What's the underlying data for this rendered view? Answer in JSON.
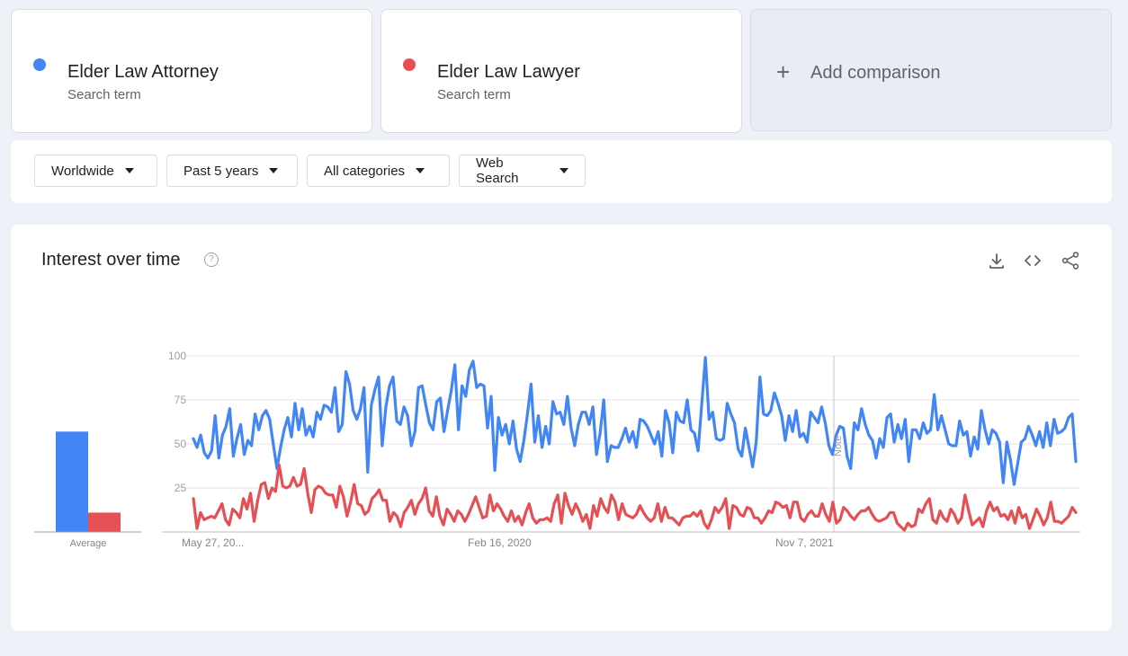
{
  "terms": [
    {
      "name": "Elder Law Attorney",
      "sub": "Search term",
      "color": "#4285f4"
    },
    {
      "name": "Elder Law Lawyer",
      "sub": "Search term",
      "color": "#e65055"
    }
  ],
  "add_comparison": {
    "plus": "+",
    "label": "Add comparison"
  },
  "filters": {
    "region": "Worldwide",
    "time": "Past 5 years",
    "category": "All categories",
    "property": "Web Search"
  },
  "panel": {
    "title": "Interest over time",
    "help": "?",
    "actions": [
      "download-icon",
      "embed-icon",
      "share-icon"
    ]
  },
  "chart_data": {
    "type": "line",
    "ylim": [
      0,
      100
    ],
    "y_ticks": [
      25,
      50,
      75,
      100
    ],
    "x_tick_labels": [
      "May 27, 20...",
      "Feb 16, 2020",
      "Nov 7, 2021"
    ],
    "note_label": "Note",
    "average": {
      "label": "Average",
      "values": [
        57,
        11
      ]
    },
    "series": [
      {
        "name": "Elder Law Attorney",
        "color": "#4285f4",
        "values": [
          53,
          48,
          55,
          45,
          42,
          46,
          66,
          42,
          55,
          60,
          70,
          43,
          53,
          61,
          44,
          52,
          49,
          67,
          58,
          66,
          69,
          64,
          50,
          36,
          48,
          58,
          65,
          54,
          73,
          58,
          70,
          55,
          60,
          54,
          68,
          64,
          72,
          71,
          68,
          82,
          57,
          61,
          91,
          84,
          69,
          64,
          70,
          82,
          34,
          72,
          81,
          88,
          49,
          71,
          83,
          88,
          63,
          61,
          71,
          66,
          49,
          57,
          82,
          83,
          72,
          62,
          58,
          74,
          76,
          57,
          69,
          80,
          95,
          58,
          83,
          77,
          92,
          97,
          82,
          84,
          83,
          59,
          77,
          35,
          65,
          55,
          61,
          50,
          63,
          47,
          40,
          52,
          67,
          84,
          51,
          66,
          48,
          60,
          50,
          74,
          67,
          68,
          61,
          77,
          59,
          49,
          61,
          68,
          68,
          61,
          71,
          44,
          56,
          75,
          40,
          49,
          48,
          48,
          53,
          59,
          51,
          57,
          48,
          64,
          63,
          60,
          55,
          50,
          57,
          43,
          69,
          62,
          45,
          68,
          63,
          62,
          75,
          58,
          56,
          46,
          73,
          99,
          64,
          68,
          53,
          52,
          53,
          73,
          67,
          62,
          47,
          43,
          59,
          48,
          37,
          51,
          88,
          67,
          66,
          69,
          79,
          73,
          66,
          52,
          66,
          57,
          69,
          54,
          56,
          51,
          68,
          65,
          62,
          71,
          62,
          49,
          44,
          55,
          60,
          59,
          43,
          36,
          62,
          58,
          70,
          61,
          55,
          52,
          42,
          53,
          48,
          65,
          67,
          51,
          61,
          53,
          64,
          40,
          58,
          58,
          53,
          62,
          56,
          58,
          78,
          58,
          66,
          58,
          50,
          49,
          49,
          63,
          55,
          57,
          43,
          54,
          47,
          69,
          58,
          50,
          58,
          56,
          51,
          28,
          51,
          41,
          27,
          39,
          51,
          53,
          60,
          55,
          49,
          57,
          48,
          62,
          49,
          64,
          56,
          57,
          59,
          65,
          67,
          40
        ]
      },
      {
        "name": "Elder Law Lawyer",
        "color": "#e65055",
        "values": [
          19,
          2,
          11,
          7,
          8,
          9,
          8,
          12,
          16,
          7,
          4,
          13,
          11,
          8,
          19,
          13,
          22,
          6,
          18,
          27,
          28,
          19,
          25,
          23,
          38,
          26,
          25,
          26,
          31,
          26,
          27,
          36,
          22,
          11,
          24,
          26,
          25,
          22,
          21,
          21,
          14,
          26,
          20,
          9,
          17,
          27,
          16,
          15,
          10,
          12,
          19,
          21,
          24,
          18,
          18,
          6,
          11,
          9,
          3,
          11,
          14,
          18,
          10,
          16,
          19,
          25,
          12,
          9,
          20,
          9,
          4,
          13,
          10,
          6,
          12,
          10,
          6,
          10,
          15,
          20,
          14,
          8,
          9,
          21,
          12,
          16,
          13,
          9,
          6,
          12,
          6,
          9,
          4,
          11,
          16,
          8,
          5,
          7,
          7,
          8,
          6,
          16,
          21,
          5,
          22,
          15,
          10,
          16,
          12,
          6,
          10,
          2,
          15,
          9,
          19,
          14,
          11,
          21,
          17,
          7,
          16,
          10,
          9,
          8,
          10,
          15,
          11,
          8,
          6,
          8,
          16,
          6,
          14,
          8,
          8,
          6,
          4,
          8,
          9,
          9,
          11,
          9,
          12,
          5,
          2,
          7,
          14,
          11,
          14,
          19,
          2,
          15,
          14,
          10,
          9,
          14,
          13,
          8,
          8,
          5,
          8,
          12,
          11,
          17,
          16,
          14,
          15,
          8,
          17,
          17,
          8,
          6,
          10,
          12,
          9,
          9,
          16,
          10,
          6,
          17,
          5,
          7,
          14,
          12,
          9,
          7,
          10,
          12,
          12,
          14,
          10,
          7,
          6,
          7,
          8,
          11,
          11,
          5,
          3,
          1,
          5,
          3,
          4,
          13,
          11,
          16,
          19,
          7,
          5,
          12,
          8,
          6,
          13,
          10,
          5,
          8,
          21,
          12,
          4,
          6,
          8,
          3,
          12,
          17,
          12,
          14,
          9,
          10,
          7,
          12,
          5,
          14,
          8,
          10,
          2,
          7,
          13,
          9,
          4,
          8,
          17,
          6,
          6,
          5,
          7,
          9,
          14,
          11
        ]
      }
    ]
  }
}
